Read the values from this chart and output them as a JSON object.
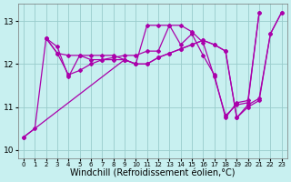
{
  "background_color": "#c8f0f0",
  "line_color": "#aa00aa",
  "grid_color": "#99cccc",
  "xlabel": "Windchill (Refroidissement éolien,°C)",
  "xlabel_fontsize": 7,
  "xlim": [
    -0.5,
    23.5
  ],
  "ylim": [
    9.8,
    13.4
  ],
  "yticks": [
    10,
    11,
    12,
    13
  ],
  "xticks": [
    0,
    1,
    2,
    3,
    4,
    5,
    6,
    7,
    8,
    9,
    10,
    11,
    12,
    13,
    14,
    15,
    16,
    17,
    18,
    19,
    20,
    21,
    22,
    23
  ],
  "series": [
    {
      "x": [
        0,
        1,
        2,
        3,
        4,
        5,
        6,
        7,
        8,
        9,
        10,
        11,
        12,
        13,
        14,
        15,
        16,
        17,
        18,
        19,
        20,
        21
      ],
      "y": [
        10.3,
        10.5,
        12.6,
        12.4,
        11.7,
        12.2,
        12.2,
        12.2,
        12.2,
        12.1,
        12.0,
        12.9,
        12.9,
        12.9,
        12.9,
        12.75,
        12.5,
        11.7,
        10.8,
        11.05,
        11.1,
        13.2
      ]
    },
    {
      "x": [
        2,
        3,
        4,
        5,
        6,
        7,
        8,
        9,
        10,
        11,
        12,
        13,
        14,
        15,
        16,
        17,
        18,
        19,
        20,
        21,
        22,
        23
      ],
      "y": [
        12.6,
        12.25,
        12.2,
        12.2,
        12.1,
        12.1,
        12.1,
        12.1,
        12.0,
        12.0,
        12.15,
        12.25,
        12.35,
        12.45,
        12.55,
        12.45,
        12.3,
        10.75,
        11.0,
        11.15,
        12.7,
        13.2
      ]
    },
    {
      "x": [
        2,
        3,
        4,
        5,
        6,
        7,
        8,
        9,
        10,
        11,
        12,
        13,
        14,
        15,
        16,
        17,
        18,
        19,
        20,
        21,
        22,
        23
      ],
      "y": [
        12.6,
        12.25,
        11.75,
        11.85,
        12.0,
        12.1,
        12.15,
        12.2,
        12.2,
        12.3,
        12.3,
        12.9,
        12.45,
        12.7,
        12.2,
        11.75,
        10.75,
        11.1,
        11.15,
        13.2,
        null,
        null
      ]
    },
    {
      "x": [
        0,
        9,
        10,
        11,
        12,
        13,
        14,
        15,
        16,
        17,
        18,
        19,
        20,
        21,
        22,
        23
      ],
      "y": [
        10.3,
        12.1,
        12.0,
        12.0,
        12.15,
        12.25,
        12.35,
        12.45,
        12.55,
        12.45,
        12.3,
        10.75,
        11.05,
        11.2,
        12.7,
        13.2
      ]
    }
  ],
  "marker": "D",
  "marker_size": 2.0,
  "linewidth": 0.9
}
